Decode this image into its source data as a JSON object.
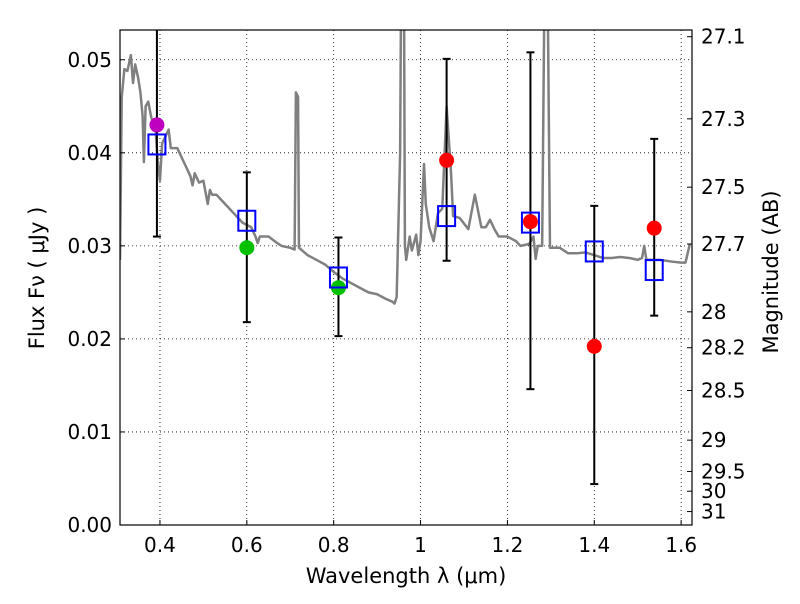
{
  "chart_data": {
    "type": "scatter",
    "xlabel": "Wavelength  λ (μm)",
    "ylabel": "Flux  Fν  ( μJy )",
    "y2label": "Magnitude (AB)",
    "xlim": [
      0.308,
      1.625
    ],
    "ylim": [
      0.0,
      0.0532
    ],
    "grid": true,
    "xticks": [
      "0.4",
      "0.6",
      "0.8",
      "1",
      "1.2",
      "1.4",
      "1.6"
    ],
    "xtick_values": [
      0.4,
      0.6,
      0.8,
      1.0,
      1.2,
      1.4,
      1.6
    ],
    "yticks": [
      "0.00",
      "0.01",
      "0.02",
      "0.03",
      "0.04",
      "0.05"
    ],
    "ytick_values": [
      0,
      0.01,
      0.02,
      0.03,
      0.04,
      0.05
    ],
    "y2ticks": [
      "27.1",
      "27.3",
      "27.5",
      "27.7",
      "28",
      "28.2",
      "28.5",
      "29",
      "29.5",
      "30",
      "31"
    ],
    "y2tick_values": [
      27.1,
      27.3,
      27.5,
      27.7,
      28,
      28.2,
      28.5,
      29,
      29.5,
      30,
      31
    ],
    "colors": {
      "spectrum": "#808080",
      "purple": "#bf00bf",
      "green": "#00c000",
      "red": "#ff0000",
      "model": "#0000ff",
      "errorbar": "#000000"
    },
    "spectrum": [
      [
        0.308,
        0.0285
      ],
      [
        0.312,
        0.046
      ],
      [
        0.318,
        0.049
      ],
      [
        0.325,
        0.0488
      ],
      [
        0.333,
        0.0505
      ],
      [
        0.338,
        0.0475
      ],
      [
        0.343,
        0.0495
      ],
      [
        0.35,
        0.048
      ],
      [
        0.355,
        0.0465
      ],
      [
        0.36,
        0.044
      ],
      [
        0.363,
        0.039
      ],
      [
        0.367,
        0.045
      ],
      [
        0.373,
        0.0455
      ],
      [
        0.38,
        0.0438
      ],
      [
        0.39,
        0.0425
      ],
      [
        0.395,
        0.039
      ],
      [
        0.4,
        0.037
      ],
      [
        0.405,
        0.041
      ],
      [
        0.41,
        0.0415
      ],
      [
        0.42,
        0.0425
      ],
      [
        0.425,
        0.0405
      ],
      [
        0.44,
        0.0405
      ],
      [
        0.45,
        0.0395
      ],
      [
        0.46,
        0.0385
      ],
      [
        0.47,
        0.0375
      ],
      [
        0.475,
        0.0365
      ],
      [
        0.48,
        0.0378
      ],
      [
        0.49,
        0.0368
      ],
      [
        0.5,
        0.037
      ],
      [
        0.51,
        0.0345
      ],
      [
        0.515,
        0.036
      ],
      [
        0.52,
        0.0355
      ],
      [
        0.53,
        0.0355
      ],
      [
        0.54,
        0.035
      ],
      [
        0.55,
        0.0345
      ],
      [
        0.57,
        0.0335
      ],
      [
        0.59,
        0.0325
      ],
      [
        0.61,
        0.032
      ],
      [
        0.62,
        0.031
      ],
      [
        0.625,
        0.0303
      ],
      [
        0.63,
        0.031
      ],
      [
        0.65,
        0.031
      ],
      [
        0.67,
        0.0303
      ],
      [
        0.68,
        0.03
      ],
      [
        0.7,
        0.0298
      ],
      [
        0.71,
        0.0296
      ],
      [
        0.713,
        0.0465
      ],
      [
        0.718,
        0.046
      ],
      [
        0.72,
        0.0298
      ],
      [
        0.74,
        0.029
      ],
      [
        0.76,
        0.0285
      ],
      [
        0.78,
        0.028
      ],
      [
        0.8,
        0.0272
      ],
      [
        0.82,
        0.0265
      ],
      [
        0.84,
        0.026
      ],
      [
        0.86,
        0.0255
      ],
      [
        0.88,
        0.025
      ],
      [
        0.9,
        0.0248
      ],
      [
        0.92,
        0.0243
      ],
      [
        0.935,
        0.024
      ],
      [
        0.94,
        0.0238
      ],
      [
        0.945,
        0.0245
      ],
      [
        0.953,
        0.04
      ],
      [
        0.955,
        0.056
      ],
      [
        0.962,
        0.056
      ],
      [
        0.964,
        0.03
      ],
      [
        0.967,
        0.0285
      ],
      [
        0.975,
        0.031
      ],
      [
        0.98,
        0.0295
      ],
      [
        0.99,
        0.0312
      ],
      [
        0.995,
        0.029
      ],
      [
        1.0,
        0.0305
      ],
      [
        1.008,
        0.0388
      ],
      [
        1.012,
        0.0345
      ],
      [
        1.02,
        0.032
      ],
      [
        1.03,
        0.0305
      ],
      [
        1.04,
        0.0335
      ],
      [
        1.05,
        0.034
      ],
      [
        1.06,
        0.045
      ],
      [
        1.07,
        0.038
      ],
      [
        1.075,
        0.0332
      ],
      [
        1.09,
        0.033
      ],
      [
        1.11,
        0.0318
      ],
      [
        1.125,
        0.0355
      ],
      [
        1.14,
        0.032
      ],
      [
        1.15,
        0.032
      ],
      [
        1.16,
        0.0328
      ],
      [
        1.17,
        0.0318
      ],
      [
        1.18,
        0.031
      ],
      [
        1.2,
        0.031
      ],
      [
        1.22,
        0.0305
      ],
      [
        1.23,
        0.03
      ],
      [
        1.25,
        0.0302
      ],
      [
        1.26,
        0.031
      ],
      [
        1.265,
        0.0286
      ],
      [
        1.27,
        0.03
      ],
      [
        1.28,
        0.03
      ],
      [
        1.285,
        0.056
      ],
      [
        1.293,
        0.056
      ],
      [
        1.298,
        0.0298
      ],
      [
        1.32,
        0.0298
      ],
      [
        1.34,
        0.0292
      ],
      [
        1.36,
        0.0292
      ],
      [
        1.38,
        0.0293
      ],
      [
        1.4,
        0.029
      ],
      [
        1.42,
        0.0287
      ],
      [
        1.44,
        0.0287
      ],
      [
        1.46,
        0.0288
      ],
      [
        1.48,
        0.0287
      ],
      [
        1.5,
        0.0285
      ],
      [
        1.51,
        0.0287
      ],
      [
        1.515,
        0.03
      ],
      [
        1.52,
        0.0285
      ],
      [
        1.55,
        0.0285
      ],
      [
        1.58,
        0.0283
      ],
      [
        1.6,
        0.0282
      ],
      [
        1.61,
        0.0282
      ],
      [
        1.62,
        0.0302
      ]
    ],
    "observations": [
      {
        "x": 0.393,
        "y": 0.043,
        "err_low": 0.031,
        "err_high": 0.056,
        "color": "purple",
        "model": 0.0409
      },
      {
        "x": 0.6,
        "y": 0.0298,
        "err_low": 0.0218,
        "err_high": 0.0379,
        "color": "green",
        "model": 0.0327
      },
      {
        "x": 0.811,
        "y": 0.0255,
        "err_low": 0.0203,
        "err_high": 0.0309,
        "color": "green",
        "model": 0.0266
      },
      {
        "x": 1.06,
        "y": 0.0392,
        "err_low": 0.0284,
        "err_high": 0.0501,
        "color": "red",
        "model": 0.0332
      },
      {
        "x": 1.253,
        "y": 0.0326,
        "err_low": 0.0146,
        "err_high": 0.0508,
        "color": "red",
        "model": 0.0325
      },
      {
        "x": 1.4,
        "y": 0.0192,
        "err_low": 0.0044,
        "err_high": 0.0343,
        "color": "red",
        "model": 0.0294
      },
      {
        "x": 1.538,
        "y": 0.0319,
        "err_low": 0.0225,
        "err_high": 0.0415,
        "color": "red",
        "model": 0.0274
      }
    ]
  }
}
